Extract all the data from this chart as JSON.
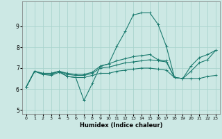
{
  "xlabel": "Humidex (Indice chaleur)",
  "bg_color": "#cce8e4",
  "grid_color": "#aad4ce",
  "line_color": "#1a7a6e",
  "xlim": [
    -0.5,
    23.5
  ],
  "ylim": [
    4.8,
    10.2
  ],
  "xticks": [
    0,
    1,
    2,
    3,
    4,
    5,
    6,
    7,
    8,
    9,
    10,
    11,
    12,
    13,
    14,
    15,
    16,
    17,
    18,
    19,
    20,
    21,
    22,
    23
  ],
  "yticks": [
    5,
    6,
    7,
    8,
    9
  ],
  "figwidth": 3.2,
  "figheight": 2.0,
  "dpi": 100,
  "line1_x": [
    0,
    1,
    2,
    3,
    4,
    5,
    6,
    7,
    8,
    9,
    10,
    11,
    12,
    13,
    14,
    15,
    16,
    17,
    18
  ],
  "line1_y": [
    6.1,
    6.85,
    6.75,
    6.75,
    6.85,
    6.6,
    6.55,
    5.45,
    6.25,
    7.1,
    7.2,
    8.05,
    8.75,
    9.55,
    9.65,
    9.65,
    9.1,
    8.05,
    6.55
  ],
  "line2_x": [
    0,
    1,
    2,
    3,
    4,
    5,
    6,
    7,
    8,
    9,
    10,
    11,
    12,
    13,
    14,
    15,
    16,
    17,
    18,
    19,
    20,
    21,
    22,
    23
  ],
  "line2_y": [
    6.1,
    6.85,
    6.75,
    6.75,
    6.85,
    6.75,
    6.7,
    6.7,
    6.8,
    7.1,
    7.2,
    7.35,
    7.45,
    7.55,
    7.6,
    7.65,
    7.4,
    7.35,
    6.55,
    6.5,
    7.1,
    7.5,
    7.65,
    7.85
  ],
  "line3_x": [
    0,
    1,
    2,
    3,
    4,
    5,
    6,
    7,
    8,
    9,
    10,
    11,
    12,
    13,
    14,
    15,
    16,
    17,
    18,
    19,
    20,
    21,
    22,
    23
  ],
  "line3_y": [
    6.1,
    6.85,
    6.7,
    6.7,
    6.85,
    6.7,
    6.65,
    6.65,
    6.75,
    7.0,
    7.05,
    7.15,
    7.25,
    7.3,
    7.35,
    7.4,
    7.35,
    7.3,
    6.55,
    6.5,
    6.85,
    7.25,
    7.4,
    7.85
  ],
  "line4_x": [
    0,
    1,
    2,
    3,
    4,
    5,
    6,
    7,
    8,
    9,
    10,
    11,
    12,
    13,
    14,
    15,
    16,
    17,
    18,
    19,
    20,
    21,
    22,
    23
  ],
  "line4_y": [
    6.1,
    6.85,
    6.7,
    6.65,
    6.8,
    6.6,
    6.55,
    6.55,
    6.65,
    6.75,
    6.75,
    6.85,
    6.9,
    6.95,
    7.0,
    7.0,
    6.95,
    6.9,
    6.55,
    6.5,
    6.5,
    6.5,
    6.6,
    6.65
  ]
}
